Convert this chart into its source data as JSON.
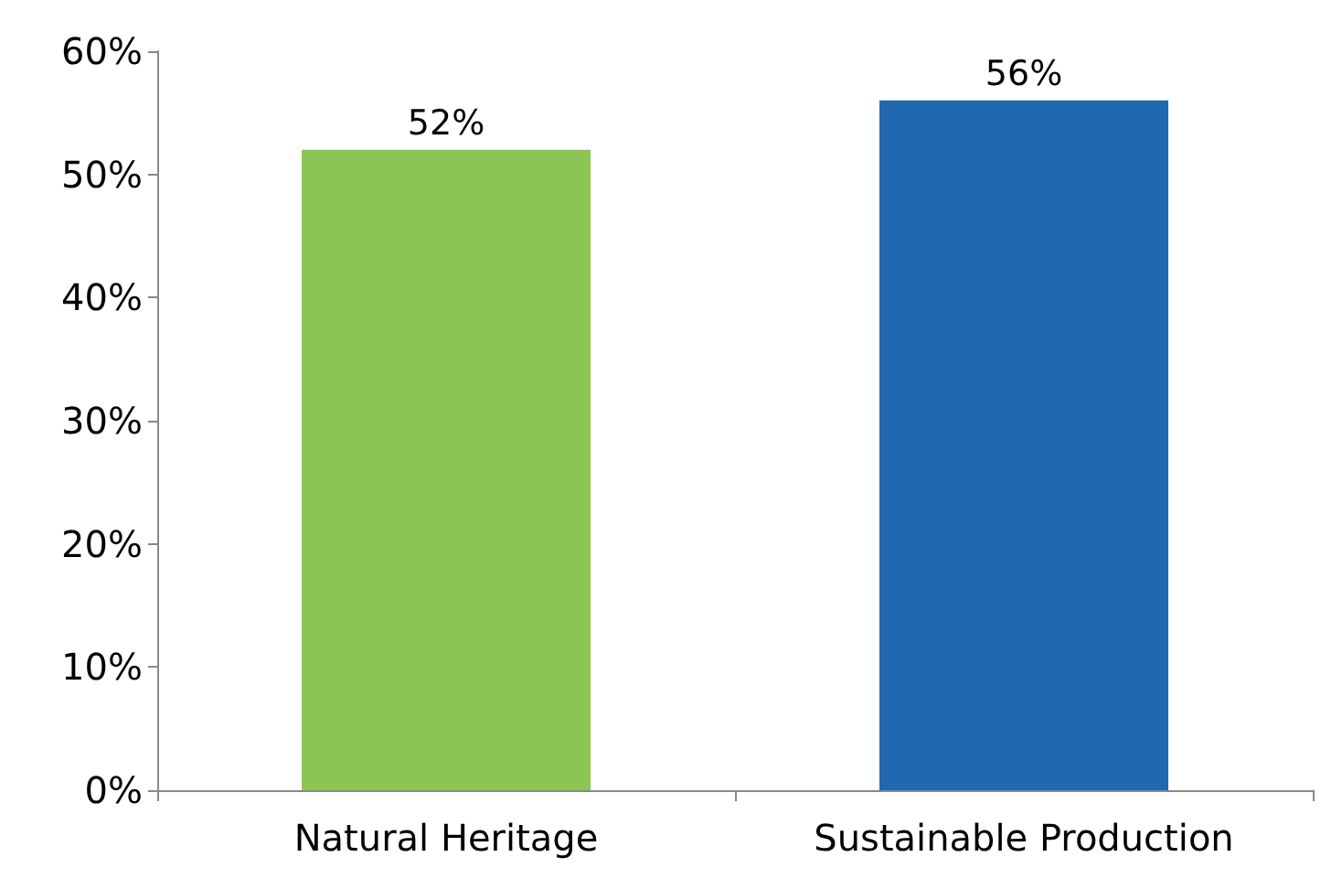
{
  "chart_data": {
    "type": "bar",
    "categories": [
      "Natural Heritage",
      "Sustainable Production"
    ],
    "values": [
      52,
      56
    ],
    "colors": [
      "#8dc554",
      "#2068b0"
    ],
    "value_labels": [
      "52%",
      "56%"
    ],
    "ylim": [
      0,
      60
    ],
    "yticks": [
      {
        "value": 0,
        "label": "0%"
      },
      {
        "value": 10,
        "label": "10%"
      },
      {
        "value": 20,
        "label": "20%"
      },
      {
        "value": 30,
        "label": "30%"
      },
      {
        "value": 40,
        "label": "40%"
      },
      {
        "value": 50,
        "label": "50%"
      },
      {
        "value": 60,
        "label": "60%"
      }
    ],
    "grid": false
  }
}
